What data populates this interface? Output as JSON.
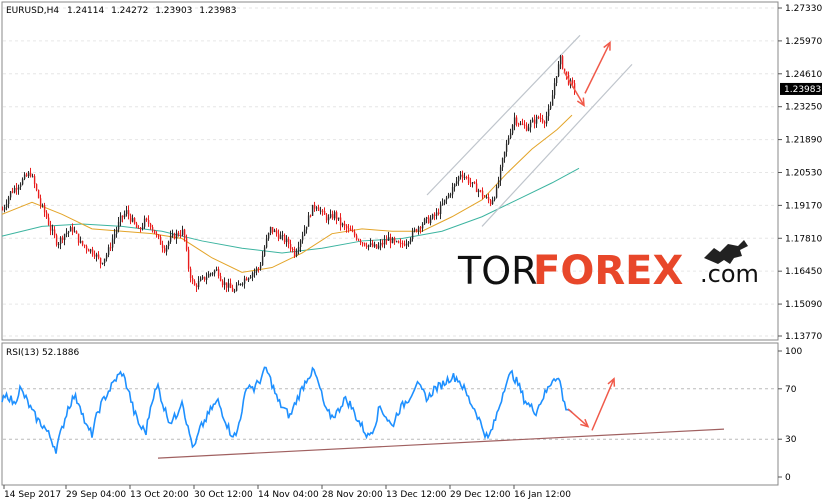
{
  "chart_data": [
    {
      "type": "candlestick",
      "title": "EURUSD,H4",
      "ohlc": [
        "1.24114",
        "1.24272",
        "1.23903",
        "1.23983"
      ],
      "current_price": "1.23983",
      "y_tick_labels": [
        "1.27330",
        "1.25970",
        "1.24610",
        "1.23250",
        "1.21890",
        "1.20530",
        "1.19170",
        "1.17810",
        "1.16450",
        "1.15090",
        "1.13770"
      ],
      "ylim": [
        1.1377,
        1.2733
      ],
      "x_tick_labels": [
        "14 Sep 2017",
        "29 Sep 04:00",
        "13 Oct 20:00",
        "30 Oct 12:00",
        "14 Nov 04:00",
        "28 Nov 20:00",
        "13 Dec 12:00",
        "29 Dec 12:00",
        "16 Jan 12:00"
      ],
      "price_path": [
        [
          0,
          1.19
        ],
        [
          8,
          1.197
        ],
        [
          15,
          1.2
        ],
        [
          22,
          1.203
        ],
        [
          28,
          1.205
        ],
        [
          33,
          1.199
        ],
        [
          38,
          1.192
        ],
        [
          43,
          1.188
        ],
        [
          48,
          1.182
        ],
        [
          55,
          1.176
        ],
        [
          62,
          1.18
        ],
        [
          70,
          1.182
        ],
        [
          78,
          1.176
        ],
        [
          85,
          1.174
        ],
        [
          92,
          1.172
        ],
        [
          98,
          1.168
        ],
        [
          105,
          1.172
        ],
        [
          112,
          1.18
        ],
        [
          118,
          1.186
        ],
        [
          124,
          1.189
        ],
        [
          130,
          1.185
        ],
        [
          136,
          1.181
        ],
        [
          142,
          1.185
        ],
        [
          148,
          1.184
        ],
        [
          155,
          1.178
        ],
        [
          162,
          1.174
        ],
        [
          168,
          1.178
        ],
        [
          175,
          1.18
        ],
        [
          181,
          1.181
        ],
        [
          186,
          1.166
        ],
        [
          191,
          1.158
        ],
        [
          197,
          1.16
        ],
        [
          203,
          1.162
        ],
        [
          209,
          1.164
        ],
        [
          215,
          1.165
        ],
        [
          220,
          1.16
        ],
        [
          226,
          1.158
        ],
        [
          232,
          1.156
        ],
        [
          238,
          1.16
        ],
        [
          244,
          1.162
        ],
        [
          250,
          1.164
        ],
        [
          257,
          1.166
        ],
        [
          263,
          1.176
        ],
        [
          268,
          1.182
        ],
        [
          274,
          1.18
        ],
        [
          280,
          1.178
        ],
        [
          286,
          1.176
        ],
        [
          292,
          1.172
        ],
        [
          298,
          1.178
        ],
        [
          304,
          1.184
        ],
        [
          309,
          1.19
        ],
        [
          314,
          1.192
        ],
        [
          320,
          1.188
        ],
        [
          326,
          1.186
        ],
        [
          332,
          1.188
        ],
        [
          338,
          1.184
        ],
        [
          344,
          1.182
        ],
        [
          350,
          1.18
        ],
        [
          356,
          1.178
        ],
        [
          362,
          1.176
        ],
        [
          368,
          1.175
        ],
        [
          374,
          1.174
        ],
        [
          380,
          1.176
        ],
        [
          386,
          1.178
        ],
        [
          392,
          1.176
        ],
        [
          398,
          1.175
        ],
        [
          404,
          1.177
        ],
        [
          410,
          1.18
        ],
        [
          416,
          1.183
        ],
        [
          422,
          1.185
        ],
        [
          428,
          1.186
        ],
        [
          434,
          1.188
        ],
        [
          440,
          1.192
        ],
        [
          446,
          1.196
        ],
        [
          452,
          1.2
        ],
        [
          458,
          1.205
        ],
        [
          464,
          1.203
        ],
        [
          470,
          1.2
        ],
        [
          476,
          1.198
        ],
        [
          482,
          1.195
        ],
        [
          488,
          1.193
        ],
        [
          494,
          1.198
        ],
        [
          500,
          1.21
        ],
        [
          506,
          1.22
        ],
        [
          512,
          1.228
        ],
        [
          518,
          1.225
        ],
        [
          524,
          1.224
        ],
        [
          530,
          1.226
        ],
        [
          536,
          1.228
        ],
        [
          542,
          1.227
        ],
        [
          548,
          1.232
        ],
        [
          553,
          1.245
        ],
        [
          558,
          1.252
        ],
        [
          562,
          1.247
        ],
        [
          566,
          1.243
        ],
        [
          570,
          1.241
        ],
        [
          573,
          1.24
        ]
      ],
      "ma_fast_path": [
        [
          0,
          1.188
        ],
        [
          30,
          1.193
        ],
        [
          60,
          1.188
        ],
        [
          90,
          1.182
        ],
        [
          120,
          1.181
        ],
        [
          150,
          1.18
        ],
        [
          180,
          1.178
        ],
        [
          210,
          1.17
        ],
        [
          240,
          1.164
        ],
        [
          270,
          1.166
        ],
        [
          300,
          1.172
        ],
        [
          330,
          1.18
        ],
        [
          360,
          1.182
        ],
        [
          390,
          1.181
        ],
        [
          420,
          1.181
        ],
        [
          450,
          1.187
        ],
        [
          480,
          1.194
        ],
        [
          505,
          1.205
        ],
        [
          530,
          1.215
        ],
        [
          555,
          1.223
        ],
        [
          570,
          1.229
        ]
      ],
      "ma_slow_path": [
        [
          0,
          1.179
        ],
        [
          40,
          1.183
        ],
        [
          80,
          1.184
        ],
        [
          120,
          1.183
        ],
        [
          160,
          1.181
        ],
        [
          200,
          1.177
        ],
        [
          240,
          1.174
        ],
        [
          280,
          1.172
        ],
        [
          320,
          1.174
        ],
        [
          360,
          1.177
        ],
        [
          400,
          1.178
        ],
        [
          440,
          1.181
        ],
        [
          480,
          1.187
        ],
        [
          520,
          1.195
        ],
        [
          550,
          1.201
        ],
        [
          577,
          1.207
        ]
      ],
      "channel_lines": [
        [
          [
            425,
            1.196
          ],
          [
            578,
            1.262
          ]
        ],
        [
          [
            480,
            1.183
          ],
          [
            630,
            1.25
          ]
        ]
      ],
      "arrows": [
        [
          [
            583,
            1.238
          ],
          [
            608,
            1.259
          ]
        ],
        [
          [
            562,
            1.247
          ],
          [
            582,
            1.233
          ]
        ]
      ],
      "colors": {
        "bull": "#2a2a2a",
        "bear": "#e81e1e",
        "ma_fast": "#e3a428",
        "ma_slow": "#3cb4a0",
        "channel": "#bfc5cc",
        "arrow": "#f05a4a",
        "grid": "#e6e6e6"
      }
    },
    {
      "type": "line",
      "title": "RSI(13) 52.1886",
      "y_tick_labels": [
        "100",
        "70",
        "30",
        "0"
      ],
      "ylim": [
        0,
        100
      ],
      "levels": [
        70,
        30
      ],
      "rsi": [
        [
          0,
          60
        ],
        [
          6,
          65
        ],
        [
          12,
          58
        ],
        [
          18,
          70
        ],
        [
          24,
          62
        ],
        [
          30,
          52
        ],
        [
          36,
          45
        ],
        [
          42,
          40
        ],
        [
          48,
          32
        ],
        [
          54,
          22
        ],
        [
          60,
          38
        ],
        [
          66,
          55
        ],
        [
          72,
          64
        ],
        [
          78,
          58
        ],
        [
          84,
          40
        ],
        [
          90,
          34
        ],
        [
          96,
          52
        ],
        [
          102,
          62
        ],
        [
          108,
          70
        ],
        [
          114,
          78
        ],
        [
          120,
          83
        ],
        [
          126,
          70
        ],
        [
          132,
          52
        ],
        [
          138,
          40
        ],
        [
          144,
          36
        ],
        [
          150,
          62
        ],
        [
          156,
          72
        ],
        [
          162,
          55
        ],
        [
          168,
          44
        ],
        [
          174,
          48
        ],
        [
          180,
          62
        ],
        [
          186,
          38
        ],
        [
          192,
          22
        ],
        [
          198,
          38
        ],
        [
          204,
          46
        ],
        [
          210,
          55
        ],
        [
          216,
          60
        ],
        [
          222,
          48
        ],
        [
          228,
          36
        ],
        [
          234,
          32
        ],
        [
          240,
          54
        ],
        [
          246,
          74
        ],
        [
          252,
          70
        ],
        [
          258,
          77
        ],
        [
          264,
          86
        ],
        [
          270,
          74
        ],
        [
          276,
          60
        ],
        [
          282,
          54
        ],
        [
          288,
          48
        ],
        [
          294,
          60
        ],
        [
          300,
          70
        ],
        [
          306,
          80
        ],
        [
          312,
          84
        ],
        [
          318,
          70
        ],
        [
          324,
          52
        ],
        [
          330,
          48
        ],
        [
          336,
          52
        ],
        [
          342,
          62
        ],
        [
          348,
          58
        ],
        [
          354,
          48
        ],
        [
          360,
          40
        ],
        [
          366,
          32
        ],
        [
          372,
          40
        ],
        [
          378,
          56
        ],
        [
          384,
          48
        ],
        [
          390,
          40
        ],
        [
          396,
          52
        ],
        [
          402,
          58
        ],
        [
          408,
          64
        ],
        [
          414,
          74
        ],
        [
          420,
          68
        ],
        [
          426,
          62
        ],
        [
          432,
          70
        ],
        [
          438,
          72
        ],
        [
          444,
          76
        ],
        [
          450,
          80
        ],
        [
          456,
          78
        ],
        [
          462,
          70
        ],
        [
          468,
          60
        ],
        [
          474,
          52
        ],
        [
          480,
          40
        ],
        [
          486,
          30
        ],
        [
          492,
          42
        ],
        [
          498,
          58
        ],
        [
          504,
          76
        ],
        [
          510,
          82
        ],
        [
          516,
          74
        ],
        [
          522,
          62
        ],
        [
          528,
          56
        ],
        [
          534,
          52
        ],
        [
          540,
          62
        ],
        [
          546,
          70
        ],
        [
          552,
          80
        ],
        [
          558,
          76
        ],
        [
          562,
          58
        ],
        [
          566,
          54
        ],
        [
          570,
          52
        ]
      ],
      "trendline": [
        [
          158,
          15
        ],
        [
          724,
          38
        ]
      ],
      "arrows": [
        [
          [
            590,
            37
          ],
          [
            612,
            78
          ]
        ],
        [
          [
            566,
            54
          ],
          [
            586,
            40
          ]
        ]
      ],
      "colors": {
        "rsi": "#1e90ff",
        "trendline": "#a06060",
        "arrow": "#f05a4a",
        "level": "#bbbbbb"
      }
    }
  ],
  "watermark": {
    "part1": "TOR",
    "part2": "FOREX",
    "part3": ".com"
  }
}
